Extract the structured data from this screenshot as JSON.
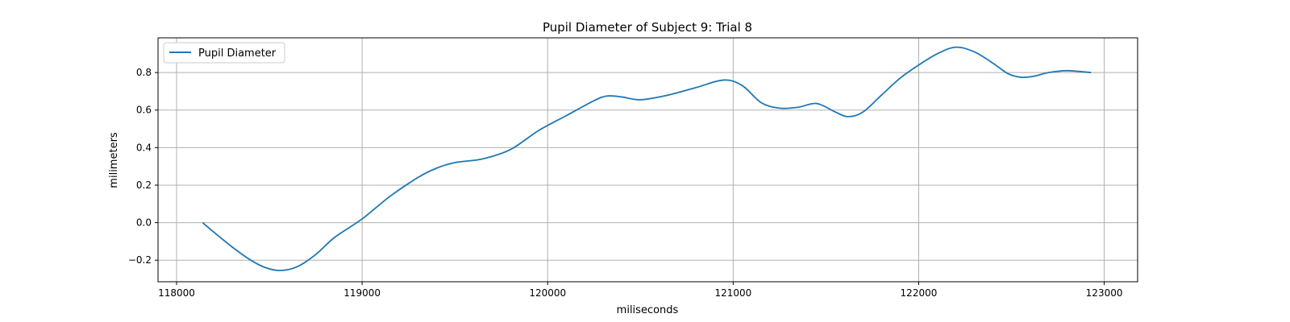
{
  "chart_data": {
    "type": "line",
    "title": "Pupil Diameter of Subject 9: Trial 8",
    "xlabel": "miliseconds",
    "ylabel": "milimeters",
    "xlim": [
      117900,
      123180
    ],
    "ylim": [
      -0.315,
      0.985
    ],
    "xticks": [
      118000,
      119000,
      120000,
      121000,
      122000,
      123000
    ],
    "yticks": [
      -0.2,
      0.0,
      0.2,
      0.4,
      0.6,
      0.8
    ],
    "grid": true,
    "legend_position": "top-left",
    "color": "#1f77b4",
    "series": [
      {
        "name": "Pupil Diameter",
        "x": [
          118140,
          118200,
          118300,
          118400,
          118480,
          118560,
          118650,
          118750,
          118850,
          119000,
          119150,
          119300,
          119400,
          119500,
          119650,
          119800,
          119950,
          120100,
          120250,
          120320,
          120400,
          120500,
          120650,
          120800,
          120950,
          121050,
          121150,
          121250,
          121350,
          121450,
          121550,
          121620,
          121700,
          121800,
          121900,
          122000,
          122100,
          122200,
          122300,
          122400,
          122480,
          122550,
          122620,
          122700,
          122800,
          122930
        ],
        "y": [
          0.0,
          -0.05,
          -0.13,
          -0.2,
          -0.24,
          -0.255,
          -0.235,
          -0.17,
          -0.08,
          0.02,
          0.14,
          0.24,
          0.29,
          0.32,
          0.34,
          0.39,
          0.49,
          0.57,
          0.65,
          0.675,
          0.67,
          0.655,
          0.68,
          0.72,
          0.76,
          0.73,
          0.64,
          0.61,
          0.615,
          0.635,
          0.59,
          0.565,
          0.59,
          0.68,
          0.77,
          0.84,
          0.9,
          0.935,
          0.91,
          0.85,
          0.795,
          0.775,
          0.78,
          0.8,
          0.81,
          0.8
        ]
      }
    ]
  }
}
